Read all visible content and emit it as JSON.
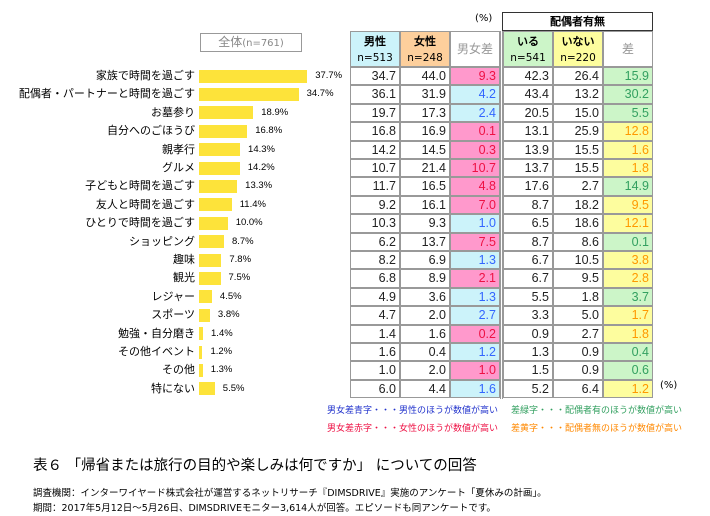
{
  "overall_box": {
    "label": "全体",
    "n": "(n=761)"
  },
  "unit_top": "(%)",
  "unit_bottom": "(%)",
  "spouse_group": "配偶者有無",
  "headers": [
    {
      "label": "男性",
      "n": "n=513",
      "bg": "#ccf3fa"
    },
    {
      "label": "女性",
      "n": "n=248",
      "bg": "#fdcf9c"
    },
    {
      "label": "男女差",
      "n": "",
      "bg": "#ffffff"
    },
    {
      "label": "いる",
      "n": "n=541",
      "bg": "#ccf5c8"
    },
    {
      "label": "いない",
      "n": "n=220",
      "bg": "#fdfd9e"
    },
    {
      "label": "差",
      "n": "",
      "bg": "#ffffff"
    }
  ],
  "colors": {
    "bar": "#fde33a",
    "female_higher_bg": "#ff99cc",
    "female_higher_text": "#ee1144",
    "male_higher_bg": "#ccf3fa",
    "male_higher_text": "#3366ff",
    "with_spouse_bg": "#ccf5c8",
    "with_spouse_text": "#33a060",
    "without_spouse_bg": "#fdfd9e",
    "without_spouse_text": "#ff9900"
  },
  "chart_data": {
    "type": "bar",
    "orientation": "horizontal",
    "categories": [
      "家族で時間を過ごす",
      "配偶者・パートナーと時間を過ごす",
      "お墓参り",
      "自分へのごほうび",
      "親孝行",
      "グルメ",
      "子どもと時間を過ごす",
      "友人と時間を過ごす",
      "ひとりで時間を過ごす",
      "ショッピング",
      "趣味",
      "観光",
      "レジャー",
      "スポーツ",
      "勉強・自分磨き",
      "その他イベント",
      "その他",
      "特にない"
    ],
    "values": [
      37.7,
      34.7,
      18.9,
      16.8,
      14.3,
      14.2,
      13.3,
      11.4,
      10.0,
      8.7,
      7.8,
      7.5,
      4.5,
      3.8,
      1.4,
      1.2,
      1.3,
      5.5
    ],
    "value_labels": [
      "37.7%",
      "34.7%",
      "18.9%",
      "16.8%",
      "14.3%",
      "14.2%",
      "13.3%",
      "11.4%",
      "10.0%",
      "8.7%",
      "7.8%",
      "7.5%",
      "4.5%",
      "3.8%",
      "1.4%",
      "1.2%",
      "1.3%",
      "5.5%"
    ]
  },
  "table": {
    "male": [
      "34.7",
      "36.1",
      "19.7",
      "16.8",
      "14.2",
      "10.7",
      "11.7",
      "9.2",
      "10.3",
      "6.2",
      "8.2",
      "6.8",
      "4.9",
      "4.7",
      "1.4",
      "1.6",
      "1.0",
      "6.0"
    ],
    "female": [
      "44.0",
      "31.9",
      "17.3",
      "16.9",
      "14.5",
      "21.4",
      "16.5",
      "16.1",
      "9.3",
      "13.7",
      "6.9",
      "8.9",
      "3.6",
      "2.0",
      "1.6",
      "0.4",
      "2.0",
      "4.4"
    ],
    "gender_diff": [
      "9.3",
      "4.2",
      "2.4",
      "0.1",
      "0.3",
      "10.7",
      "4.8",
      "7.0",
      "1.0",
      "7.5",
      "1.3",
      "2.1",
      "1.3",
      "2.7",
      "0.2",
      "1.2",
      "1.0",
      "1.6"
    ],
    "gender_diff_higher": [
      "F",
      "M",
      "M",
      "F",
      "F",
      "F",
      "F",
      "F",
      "M",
      "F",
      "M",
      "F",
      "M",
      "M",
      "F",
      "M",
      "F",
      "M"
    ],
    "with_spouse": [
      "42.3",
      "43.4",
      "20.5",
      "13.1",
      "13.9",
      "13.7",
      "17.6",
      "8.7",
      "6.5",
      "8.7",
      "6.7",
      "6.7",
      "5.5",
      "3.3",
      "0.9",
      "1.3",
      "1.5",
      "5.2"
    ],
    "without_spouse": [
      "26.4",
      "13.2",
      "15.0",
      "25.9",
      "15.5",
      "15.5",
      "2.7",
      "18.2",
      "18.6",
      "8.6",
      "10.5",
      "9.5",
      "1.8",
      "5.0",
      "2.7",
      "0.9",
      "0.9",
      "6.4"
    ],
    "spouse_diff": [
      "15.9",
      "30.2",
      "5.5",
      "12.8",
      "1.6",
      "1.8",
      "14.9",
      "9.5",
      "12.1",
      "0.1",
      "3.8",
      "2.8",
      "3.7",
      "1.7",
      "1.8",
      "0.4",
      "0.6",
      "1.2"
    ],
    "spouse_diff_higher": [
      "Y",
      "Y",
      "Y",
      "N",
      "N",
      "N",
      "Y",
      "N",
      "N",
      "Y",
      "N",
      "N",
      "Y",
      "N",
      "N",
      "Y",
      "Y",
      "N"
    ]
  },
  "legend": {
    "blue": "男女差青字・・・男性のほうが数値が高い",
    "red": "男女差赤字・・・女性のほうが数値が高い",
    "green": "差緑字・・・配偶者有のほうが数値が高い",
    "yellow": "差黄字・・・配偶者無のほうが数値が高い"
  },
  "title": "表６ 「帰省または旅行の目的や楽しみは何ですか」 についての回答",
  "footer": {
    "line1": "調査機関：インターワイヤード株式会社が運営するネットリサーチ『DIMSDRIVE』実施のアンケート「夏休みの計画」。",
    "line2": "期間：2017年5月12日～5月26日、DIMSDRIVEモニター3,614人が回答。エピソードも同アンケートです。"
  }
}
